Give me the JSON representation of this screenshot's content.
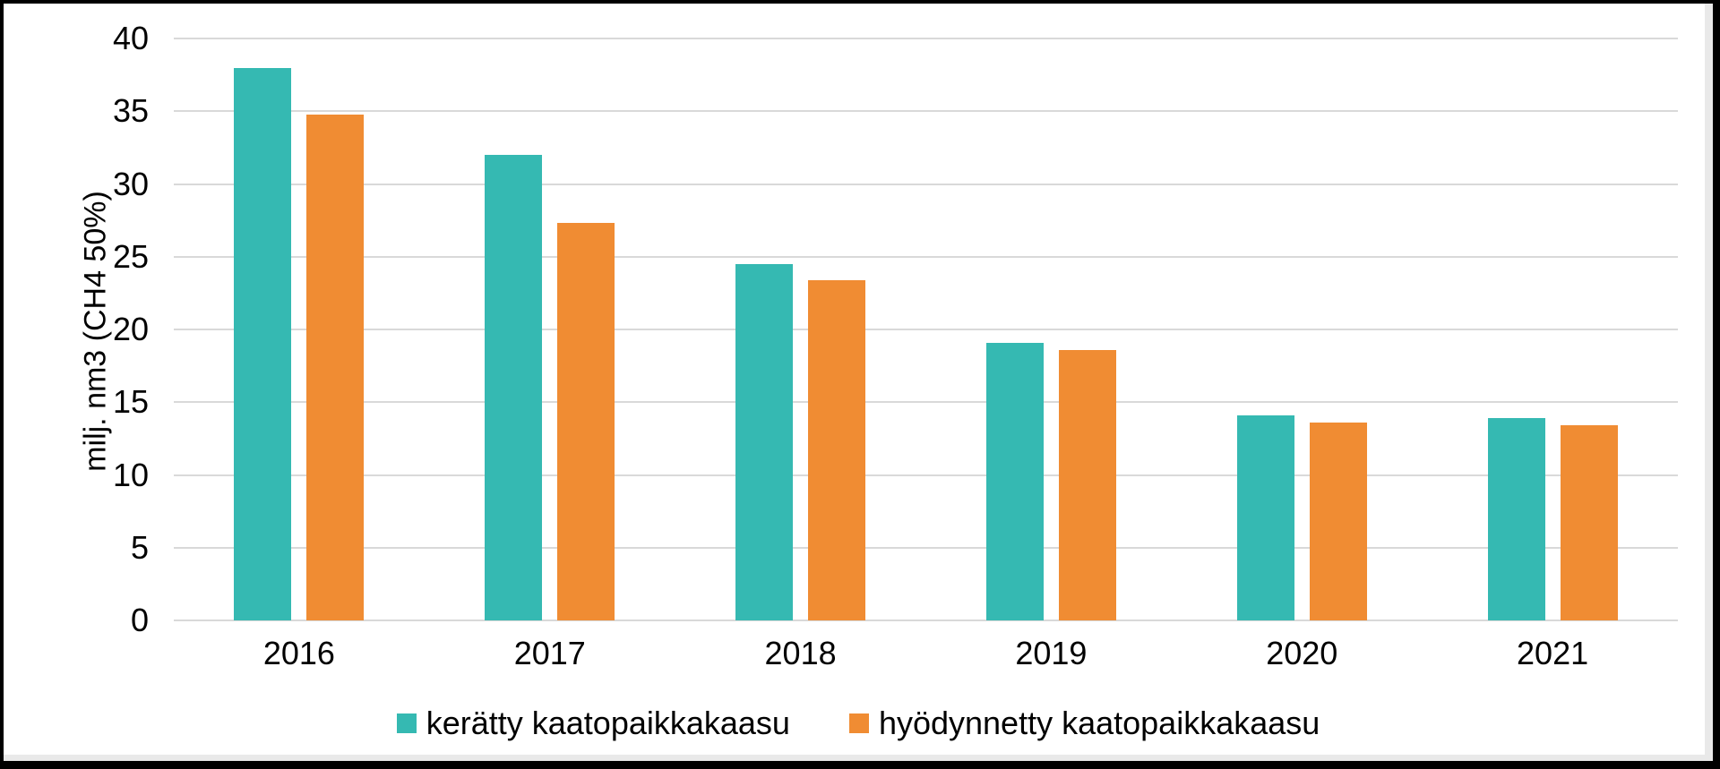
{
  "frame": {
    "background": "#ffffff",
    "border_color": "#000000",
    "inner_edge_color": "#e9e9e9"
  },
  "chart_data": {
    "type": "bar",
    "title": "",
    "categories": [
      "2016",
      "2017",
      "2018",
      "2019",
      "2020",
      "2021"
    ],
    "series": [
      {
        "name": "kerätty kaatopaikkakaasu",
        "color": "#35b9b2",
        "values": [
          38.0,
          32.0,
          24.5,
          19.1,
          14.1,
          13.9
        ]
      },
      {
        "name": "hyödynnetty kaatopaikkakaasu",
        "color": "#f08c33",
        "values": [
          34.8,
          27.3,
          23.4,
          18.6,
          13.6,
          13.4
        ]
      }
    ],
    "xlabel": "",
    "ylabel": "milj. nm3 (CH4 50%)",
    "ylim": [
      0,
      40
    ],
    "yticks": [
      0,
      5,
      10,
      15,
      20,
      25,
      30,
      35,
      40
    ],
    "grid": true,
    "gridline_color": "#d9d9d9",
    "text_color": "#000000",
    "legend_position": "bottom"
  }
}
